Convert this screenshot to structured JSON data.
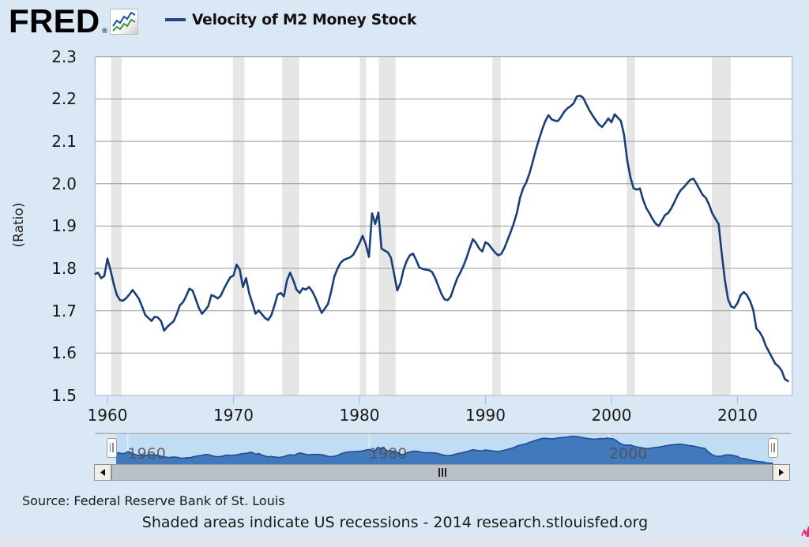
{
  "header": {
    "logo_text": "FRED",
    "logo_registered_mark": "®",
    "legend_label": "Velocity of M2 Money Stock"
  },
  "y_axis": {
    "title": "(Ratio)",
    "tick_labels": [
      "2.3",
      "2.2",
      "2.1",
      "2.0",
      "1.9",
      "1.8",
      "1.7",
      "1.6",
      "1.5"
    ]
  },
  "x_axis": {
    "tick_labels": [
      "1960",
      "1970",
      "1980",
      "1990",
      "2000",
      "2010"
    ]
  },
  "navigator": {
    "decade_labels": [
      "1960",
      "1980",
      "2000"
    ],
    "handle_grip_icon": "double-vertical-bars"
  },
  "scrollbar": {
    "left_arrow_icon": "left-triangle",
    "right_arrow_icon": "right-triangle",
    "grip_icon": "triple-vertical-bars"
  },
  "footer": {
    "source": "Source: Federal Reserve Bank of St. Louis",
    "note": "Shaded areas indicate US recessions - 2014 research.stlouisfed.org"
  },
  "colors": {
    "page_background": "#dae7f5",
    "bottom_strip": "#dfe5ed",
    "plot_background": "#ffffff",
    "gridline": "#999999",
    "axis_line": "#a9c3de",
    "recession_band": "#e6e6e6",
    "series_line": "#1a3e78",
    "legend_dash": "#26428a",
    "tick_text": "#1a1a1a",
    "navigator_background": "#c7def4",
    "navigator_fill": "#4279bd",
    "navigator_line": "#1d4e92",
    "navigator_label": "#555555",
    "scrollbar_track": "#b9c0c8",
    "scrollbar_button": "#f2efe9",
    "watermark_pink": "#ee2a7b"
  },
  "chart_data": {
    "type": "line",
    "title": "Velocity of M2 Money Stock",
    "xlabel": "",
    "ylabel": "(Ratio)",
    "legend_position": "top",
    "grid": true,
    "x_start": 1959.0,
    "x_step": 0.25,
    "xlim": [
      1959.0,
      2014.35
    ],
    "ylim": [
      1.5,
      2.3
    ],
    "yticks": [
      1.5,
      1.6,
      1.7,
      1.8,
      1.9,
      2.0,
      2.1,
      2.2,
      2.3
    ],
    "xticks": [
      1960,
      1970,
      1980,
      1990,
      2000,
      2010
    ],
    "recessions": [
      [
        1960.29,
        1961.12
      ],
      [
        1969.96,
        1970.87
      ],
      [
        1973.87,
        1975.21
      ],
      [
        1980.04,
        1980.54
      ],
      [
        1981.54,
        1982.87
      ],
      [
        1990.54,
        1991.21
      ],
      [
        2001.21,
        2001.87
      ],
      [
        2007.96,
        2009.46
      ]
    ],
    "values": [
      1.787,
      1.79,
      1.777,
      1.782,
      1.823,
      1.795,
      1.763,
      1.737,
      1.725,
      1.724,
      1.73,
      1.739,
      1.749,
      1.739,
      1.728,
      1.71,
      1.69,
      1.683,
      1.676,
      1.686,
      1.684,
      1.676,
      1.653,
      1.662,
      1.669,
      1.675,
      1.692,
      1.713,
      1.72,
      1.735,
      1.752,
      1.748,
      1.728,
      1.707,
      1.693,
      1.701,
      1.711,
      1.737,
      1.734,
      1.729,
      1.736,
      1.752,
      1.766,
      1.779,
      1.783,
      1.809,
      1.797,
      1.756,
      1.777,
      1.741,
      1.718,
      1.693,
      1.701,
      1.692,
      1.683,
      1.678,
      1.689,
      1.712,
      1.738,
      1.742,
      1.734,
      1.772,
      1.79,
      1.772,
      1.75,
      1.742,
      1.753,
      1.75,
      1.756,
      1.746,
      1.731,
      1.712,
      1.695,
      1.705,
      1.716,
      1.745,
      1.78,
      1.799,
      1.813,
      1.82,
      1.823,
      1.826,
      1.832,
      1.845,
      1.86,
      1.877,
      1.857,
      1.827,
      1.93,
      1.905,
      1.932,
      1.847,
      1.842,
      1.838,
      1.825,
      1.787,
      1.748,
      1.765,
      1.797,
      1.818,
      1.831,
      1.835,
      1.82,
      1.802,
      1.799,
      1.797,
      1.796,
      1.792,
      1.778,
      1.759,
      1.74,
      1.727,
      1.725,
      1.734,
      1.756,
      1.776,
      1.79,
      1.806,
      1.825,
      1.848,
      1.869,
      1.86,
      1.847,
      1.84,
      1.862,
      1.857,
      1.847,
      1.838,
      1.831,
      1.834,
      1.848,
      1.867,
      1.886,
      1.907,
      1.932,
      1.968,
      1.99,
      2.004,
      2.025,
      2.052,
      2.08,
      2.105,
      2.128,
      2.148,
      2.162,
      2.152,
      2.149,
      2.148,
      2.158,
      2.17,
      2.178,
      2.183,
      2.19,
      2.206,
      2.208,
      2.203,
      2.188,
      2.173,
      2.161,
      2.15,
      2.14,
      2.134,
      2.143,
      2.154,
      2.145,
      2.164,
      2.156,
      2.148,
      2.115,
      2.055,
      2.016,
      1.989,
      1.986,
      1.989,
      1.963,
      1.943,
      1.931,
      1.917,
      1.906,
      1.9,
      1.913,
      1.926,
      1.931,
      1.942,
      1.957,
      1.973,
      1.985,
      1.992,
      2.001,
      2.009,
      2.012,
      2.0,
      1.986,
      1.973,
      1.966,
      1.95,
      1.93,
      1.917,
      1.905,
      1.835,
      1.772,
      1.727,
      1.71,
      1.707,
      1.718,
      1.737,
      1.744,
      1.737,
      1.723,
      1.702,
      1.658,
      1.65,
      1.637,
      1.617,
      1.603,
      1.589,
      1.575,
      1.569,
      1.559,
      1.539,
      1.534
    ]
  }
}
